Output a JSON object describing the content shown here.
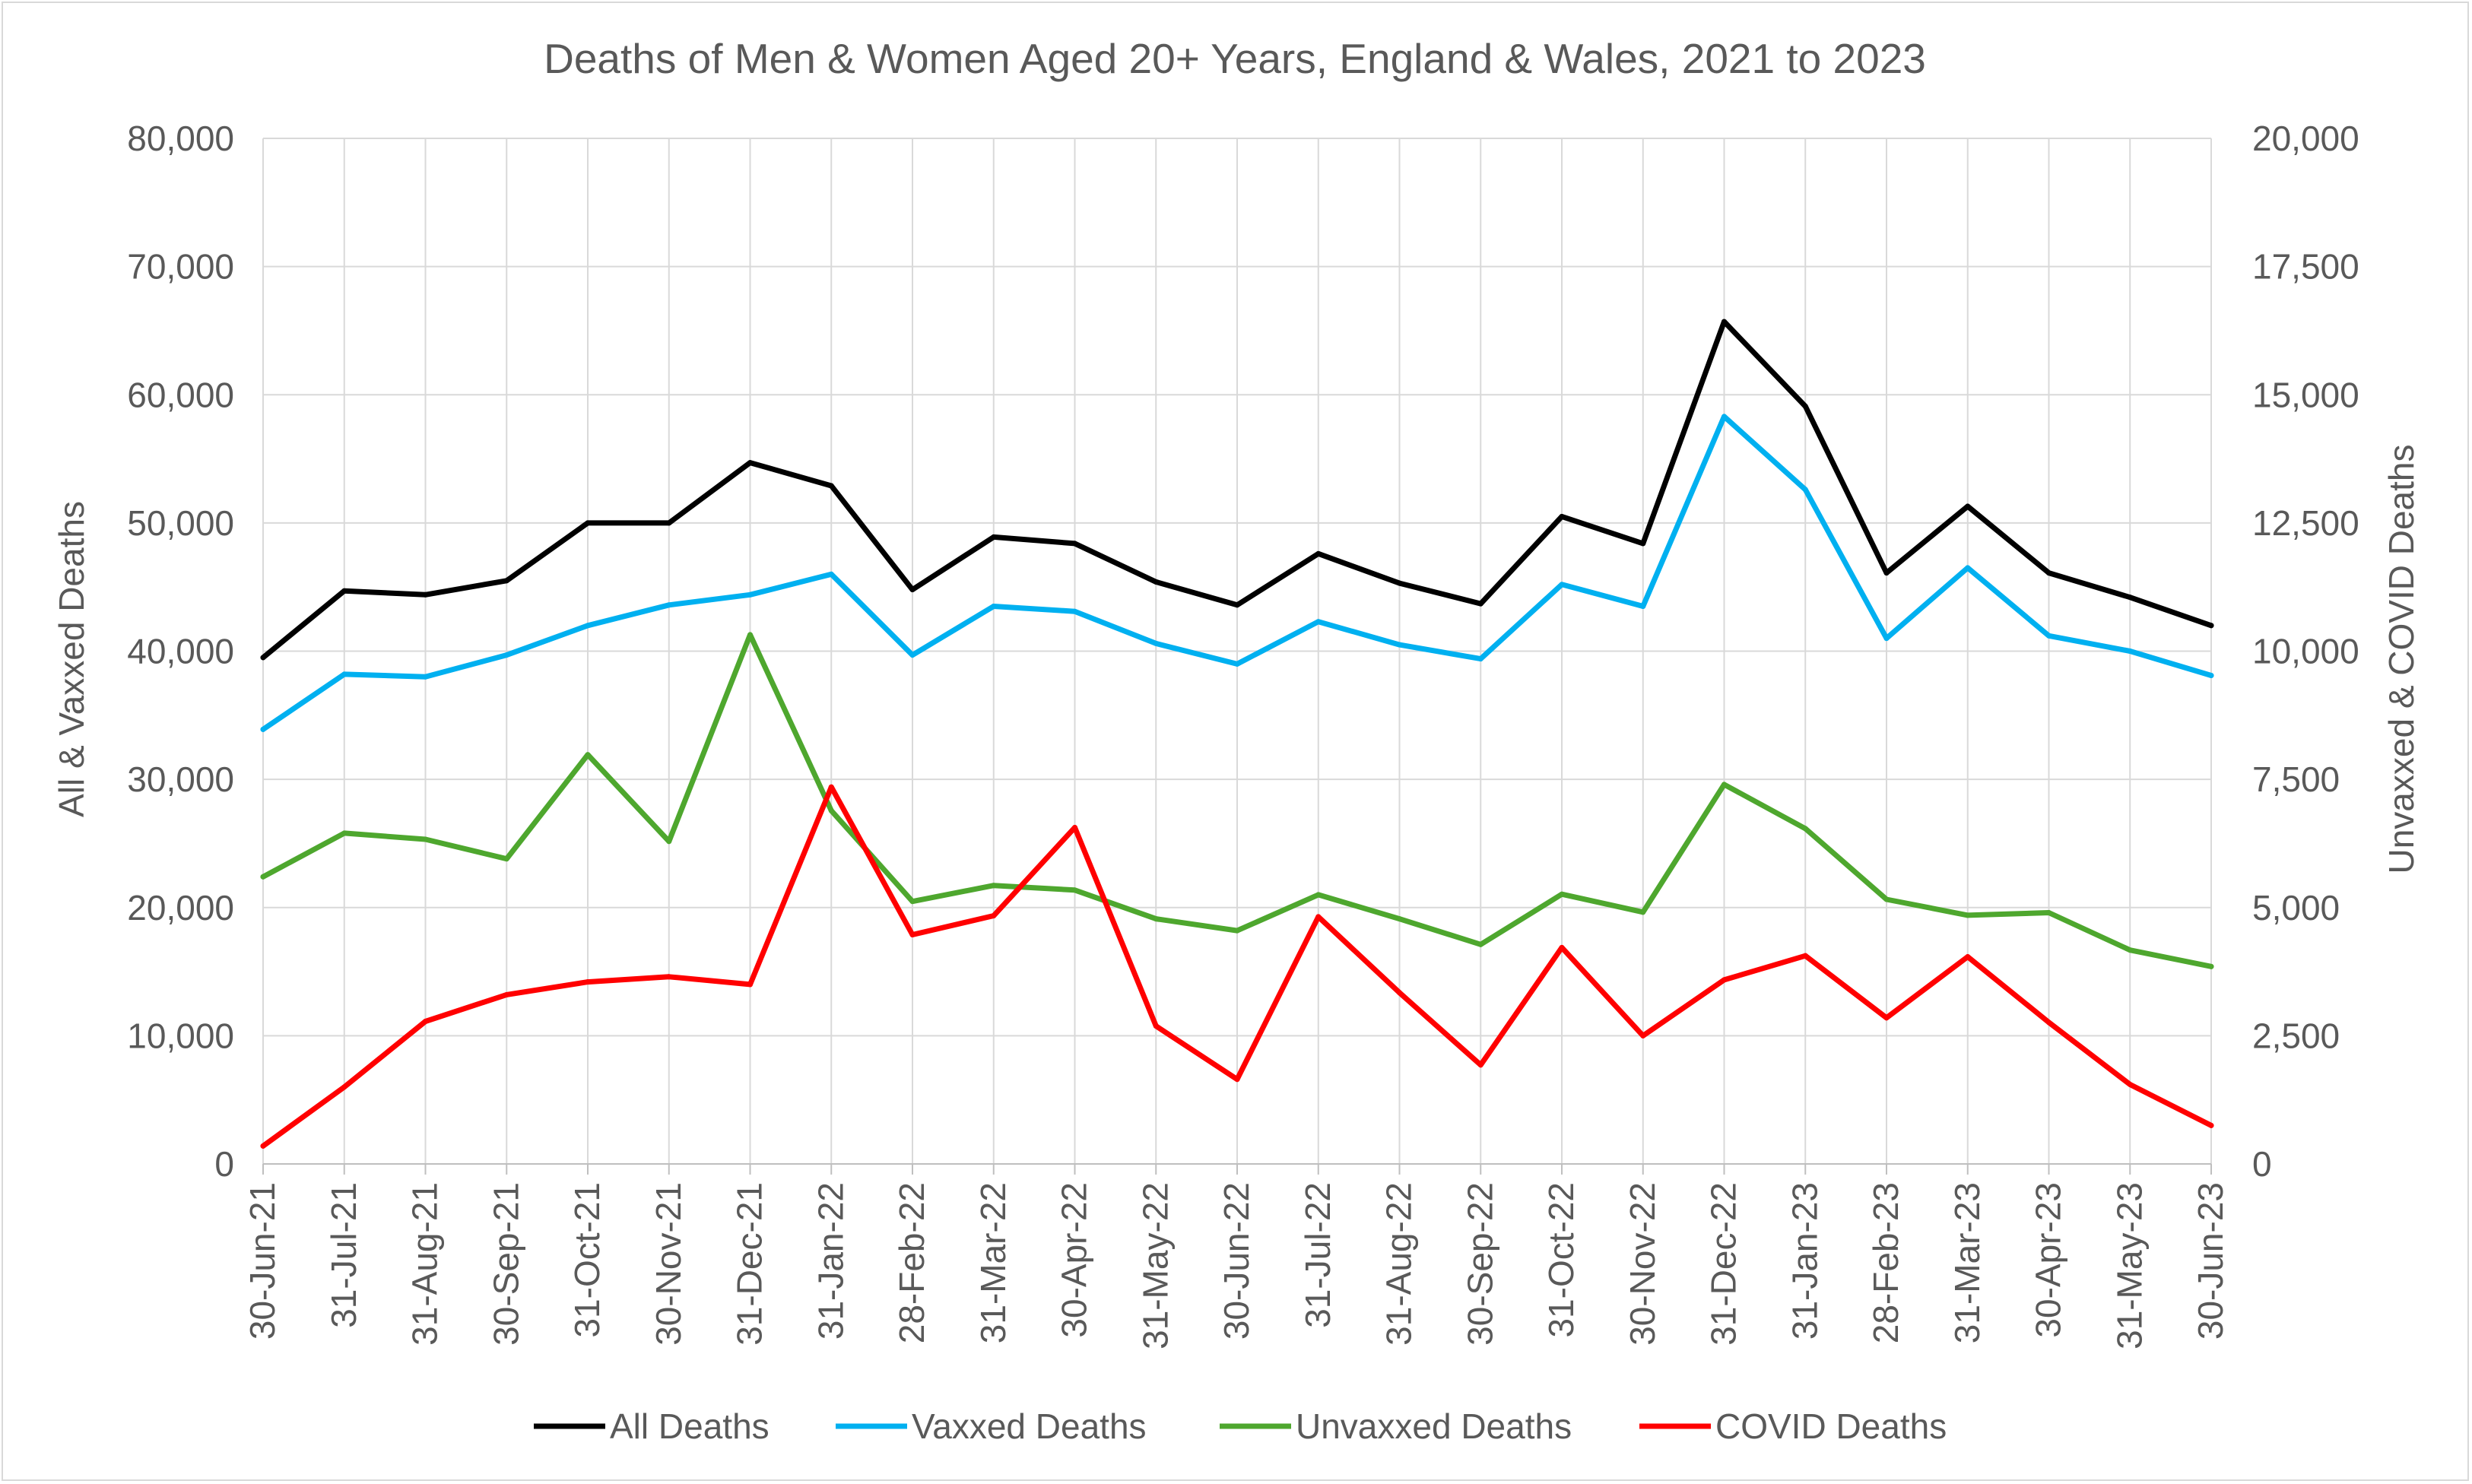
{
  "chart_data": {
    "type": "line",
    "title": "Deaths of Men & Women Aged 20+ Years, England & Wales, 2021 to 2023",
    "ylabel_left": "All & Vaxxed Deaths",
    "ylabel_right": "Unvaxxed & COVID Deaths",
    "xlabel": "",
    "ylim_left": [
      0,
      80000
    ],
    "ylim_right": [
      0,
      20000
    ],
    "yticks_left": [
      "0",
      "10,000",
      "20,000",
      "30,000",
      "40,000",
      "50,000",
      "60,000",
      "70,000",
      "80,000"
    ],
    "yticks_right": [
      "0",
      "2,500",
      "5,000",
      "7,500",
      "10,000",
      "12,500",
      "15,000",
      "17,500",
      "20,000"
    ],
    "grid": true,
    "legend_position": "bottom",
    "categories": [
      "30-Jun-21",
      "31-Jul-21",
      "31-Aug-21",
      "30-Sep-21",
      "31-Oct-21",
      "30-Nov-21",
      "31-Dec-21",
      "31-Jan-22",
      "28-Feb-22",
      "31-Mar-22",
      "30-Apr-22",
      "31-May-22",
      "30-Jun-22",
      "31-Jul-22",
      "31-Aug-22",
      "30-Sep-22",
      "31-Oct-22",
      "30-Nov-22",
      "31-Dec-22",
      "31-Jan-23",
      "28-Feb-23",
      "31-Mar-23",
      "30-Apr-23",
      "31-May-23",
      "30-Jun-23"
    ],
    "series": [
      {
        "name": "All Deaths",
        "axis": "left",
        "color": "#000000",
        "values": [
          39500,
          44700,
          44400,
          45500,
          50000,
          50000,
          54700,
          52900,
          44800,
          48900,
          48400,
          45400,
          43600,
          47600,
          45300,
          43700,
          50500,
          48400,
          65700,
          59100,
          46100,
          51300,
          46100,
          44200,
          42000
        ]
      },
      {
        "name": "Vaxxed Deaths",
        "axis": "left",
        "color": "#00b0f0",
        "values": [
          33900,
          38200,
          38000,
          39700,
          42000,
          43600,
          44400,
          46000,
          39700,
          43500,
          43100,
          40600,
          39000,
          42300,
          40500,
          39400,
          45200,
          43500,
          58300,
          52600,
          41000,
          46500,
          41200,
          40000,
          38100
        ]
      },
      {
        "name": "Unvaxxed Deaths",
        "axis": "right",
        "color": "#4ea72e",
        "values": [
          5600,
          6450,
          6330,
          5950,
          7980,
          6290,
          10320,
          6890,
          5120,
          5430,
          5340,
          4780,
          4550,
          5250,
          4780,
          4280,
          5260,
          4910,
          7400,
          6540,
          5160,
          4850,
          4900,
          4170,
          3850
        ]
      },
      {
        "name": "COVID Deaths",
        "axis": "right",
        "color": "#ff0000",
        "values": [
          350,
          1500,
          2780,
          3300,
          3550,
          3650,
          3500,
          7350,
          4470,
          4840,
          6560,
          2690,
          1650,
          4820,
          3340,
          1930,
          4220,
          2500,
          3590,
          4060,
          2850,
          4040,
          2760,
          1550,
          750
        ]
      }
    ]
  }
}
